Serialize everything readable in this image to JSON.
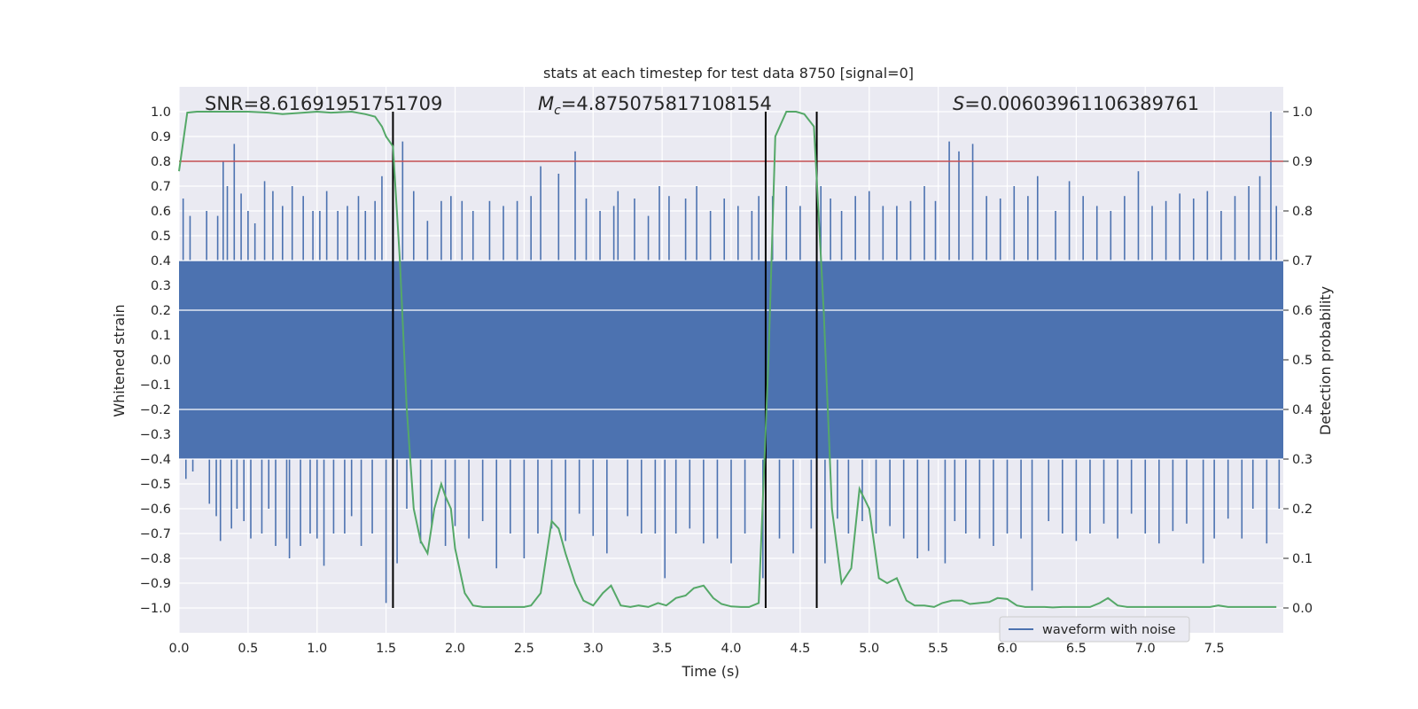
{
  "chart_data": {
    "type": "line",
    "title": "stats at each timestep for test data 8750 [signal=0]",
    "xlabel": "Time (s)",
    "ylabel_left": "Whitened strain",
    "ylabel_right": "Detection probability",
    "xlim": [
      0,
      8
    ],
    "ylim_left": [
      -1.1,
      1.1
    ],
    "ylim_right": [
      -0.05,
      1.05
    ],
    "x_ticks": [
      "0.0",
      "0.5",
      "1.0",
      "1.5",
      "2.0",
      "2.5",
      "3.0",
      "3.5",
      "4.0",
      "4.5",
      "5.0",
      "5.5",
      "6.0",
      "6.5",
      "7.0",
      "7.5"
    ],
    "y_ticks_left": [
      "1.0",
      "0.9",
      "0.8",
      "0.7",
      "0.6",
      "0.5",
      "0.4",
      "0.3",
      "0.2",
      "0.1",
      "0.0",
      "−0.1",
      "−0.2",
      "−0.3",
      "−0.4",
      "−0.5",
      "−0.6",
      "−0.7",
      "−0.8",
      "−0.9",
      "−1.0"
    ],
    "y_ticks_right": [
      "1.0",
      "0.9",
      "0.8",
      "0.7",
      "0.6",
      "0.5",
      "0.4",
      "0.3",
      "0.2",
      "0.1",
      "0.0"
    ],
    "grid": true,
    "annotations": {
      "snr": "SNR=8.61691951751709",
      "mc_prefix": "M",
      "mc_sub": "c",
      "mc_value": "=4.875075817108154",
      "s_prefix": "S",
      "s_value": "=0.00603961106389761"
    },
    "threshold": {
      "value": 0.9,
      "axis": "right",
      "color": "#c44e52"
    },
    "vertical_lines": [
      1.55,
      4.25,
      4.62
    ],
    "vertical_line_range": [
      -1.0,
      1.0
    ],
    "waveform": {
      "name": "waveform with noise",
      "color": "#4c72b0",
      "core_band": [
        -0.4,
        0.4
      ],
      "spikes": [
        [
          0.03,
          0.65
        ],
        [
          0.05,
          -0.48
        ],
        [
          0.08,
          0.58
        ],
        [
          0.1,
          -0.45
        ],
        [
          0.2,
          0.6
        ],
        [
          0.22,
          -0.58
        ],
        [
          0.27,
          -0.63
        ],
        [
          0.28,
          0.58
        ],
        [
          0.3,
          -0.73
        ],
        [
          0.32,
          0.8
        ],
        [
          0.35,
          0.7
        ],
        [
          0.38,
          -0.68
        ],
        [
          0.4,
          0.87
        ],
        [
          0.42,
          -0.6
        ],
        [
          0.45,
          0.67
        ],
        [
          0.47,
          -0.65
        ],
        [
          0.5,
          0.6
        ],
        [
          0.52,
          -0.72
        ],
        [
          0.55,
          0.55
        ],
        [
          0.6,
          -0.7
        ],
        [
          0.62,
          0.72
        ],
        [
          0.65,
          -0.6
        ],
        [
          0.68,
          0.68
        ],
        [
          0.7,
          -0.75
        ],
        [
          0.75,
          0.62
        ],
        [
          0.78,
          -0.72
        ],
        [
          0.8,
          -0.8
        ],
        [
          0.82,
          0.7
        ],
        [
          0.88,
          -0.75
        ],
        [
          0.9,
          0.66
        ],
        [
          0.95,
          -0.7
        ],
        [
          0.97,
          0.6
        ],
        [
          1.0,
          -0.72
        ],
        [
          1.02,
          0.6
        ],
        [
          1.05,
          -0.83
        ],
        [
          1.07,
          0.68
        ],
        [
          1.12,
          -0.7
        ],
        [
          1.15,
          0.6
        ],
        [
          1.2,
          -0.7
        ],
        [
          1.22,
          0.62
        ],
        [
          1.25,
          -0.63
        ],
        [
          1.3,
          0.66
        ],
        [
          1.32,
          -0.75
        ],
        [
          1.35,
          0.6
        ],
        [
          1.4,
          -0.7
        ],
        [
          1.42,
          0.64
        ],
        [
          1.47,
          0.74
        ],
        [
          1.5,
          -0.98
        ],
        [
          1.55,
          0.62
        ],
        [
          1.58,
          -0.82
        ],
        [
          1.62,
          0.88
        ],
        [
          1.65,
          -0.6
        ],
        [
          1.7,
          0.68
        ],
        [
          1.75,
          -0.74
        ],
        [
          1.8,
          0.56
        ],
        [
          1.83,
          -0.67
        ],
        [
          1.9,
          0.64
        ],
        [
          1.93,
          -0.75
        ],
        [
          1.97,
          0.66
        ],
        [
          2.0,
          -0.67
        ],
        [
          2.05,
          0.64
        ],
        [
          2.1,
          -0.72
        ],
        [
          2.13,
          0.6
        ],
        [
          2.2,
          -0.65
        ],
        [
          2.25,
          0.64
        ],
        [
          2.3,
          -0.84
        ],
        [
          2.35,
          0.62
        ],
        [
          2.4,
          -0.7
        ],
        [
          2.45,
          0.64
        ],
        [
          2.5,
          -0.8
        ],
        [
          2.55,
          0.66
        ],
        [
          2.6,
          -0.7
        ],
        [
          2.62,
          0.78
        ],
        [
          2.7,
          -0.68
        ],
        [
          2.75,
          0.75
        ],
        [
          2.8,
          -0.73
        ],
        [
          2.87,
          0.84
        ],
        [
          2.9,
          -0.62
        ],
        [
          2.95,
          0.65
        ],
        [
          3.0,
          -0.71
        ],
        [
          3.05,
          0.6
        ],
        [
          3.1,
          -0.78
        ],
        [
          3.15,
          0.62
        ],
        [
          3.18,
          0.68
        ],
        [
          3.25,
          -0.63
        ],
        [
          3.3,
          0.65
        ],
        [
          3.35,
          -0.7
        ],
        [
          3.4,
          0.58
        ],
        [
          3.45,
          -0.7
        ],
        [
          3.48,
          0.7
        ],
        [
          3.52,
          -0.88
        ],
        [
          3.55,
          0.66
        ],
        [
          3.6,
          -0.7
        ],
        [
          3.67,
          0.65
        ],
        [
          3.7,
          -0.68
        ],
        [
          3.75,
          0.7
        ],
        [
          3.8,
          -0.74
        ],
        [
          3.85,
          0.6
        ],
        [
          3.9,
          -0.72
        ],
        [
          3.95,
          0.65
        ],
        [
          4.0,
          -0.82
        ],
        [
          4.05,
          0.62
        ],
        [
          4.1,
          -0.7
        ],
        [
          4.15,
          0.6
        ],
        [
          4.2,
          0.66
        ],
        [
          4.23,
          -0.88
        ],
        [
          4.3,
          0.66
        ],
        [
          4.35,
          -0.72
        ],
        [
          4.4,
          0.7
        ],
        [
          4.45,
          -0.78
        ],
        [
          4.5,
          0.62
        ],
        [
          4.58,
          -0.68
        ],
        [
          4.65,
          0.7
        ],
        [
          4.68,
          -0.82
        ],
        [
          4.72,
          0.65
        ],
        [
          4.77,
          -0.64
        ],
        [
          4.8,
          0.6
        ],
        [
          4.85,
          -0.7
        ],
        [
          4.9,
          0.66
        ],
        [
          4.95,
          -0.65
        ],
        [
          5.0,
          0.68
        ],
        [
          5.05,
          -0.7
        ],
        [
          5.1,
          0.62
        ],
        [
          5.15,
          -0.67
        ],
        [
          5.2,
          0.62
        ],
        [
          5.25,
          -0.72
        ],
        [
          5.3,
          0.64
        ],
        [
          5.35,
          -0.8
        ],
        [
          5.4,
          0.7
        ],
        [
          5.43,
          -0.77
        ],
        [
          5.48,
          0.64
        ],
        [
          5.55,
          -0.82
        ],
        [
          5.58,
          0.88
        ],
        [
          5.62,
          -0.65
        ],
        [
          5.65,
          0.84
        ],
        [
          5.7,
          -0.7
        ],
        [
          5.75,
          0.87
        ],
        [
          5.8,
          -0.72
        ],
        [
          5.85,
          0.66
        ],
        [
          5.9,
          -0.75
        ],
        [
          5.95,
          0.65
        ],
        [
          6.0,
          -0.7
        ],
        [
          6.05,
          0.7
        ],
        [
          6.1,
          -0.72
        ],
        [
          6.15,
          0.66
        ],
        [
          6.18,
          -0.93
        ],
        [
          6.22,
          0.74
        ],
        [
          6.3,
          -0.65
        ],
        [
          6.35,
          0.6
        ],
        [
          6.4,
          -0.7
        ],
        [
          6.45,
          0.72
        ],
        [
          6.5,
          -0.73
        ],
        [
          6.55,
          0.66
        ],
        [
          6.6,
          -0.7
        ],
        [
          6.65,
          0.62
        ],
        [
          6.7,
          -0.66
        ],
        [
          6.75,
          0.6
        ],
        [
          6.8,
          -0.72
        ],
        [
          6.85,
          0.66
        ],
        [
          6.9,
          -0.62
        ],
        [
          6.95,
          0.76
        ],
        [
          7.0,
          -0.7
        ],
        [
          7.05,
          0.62
        ],
        [
          7.1,
          -0.74
        ],
        [
          7.15,
          0.64
        ],
        [
          7.2,
          -0.69
        ],
        [
          7.25,
          0.67
        ],
        [
          7.3,
          -0.66
        ],
        [
          7.35,
          0.65
        ],
        [
          7.42,
          -0.82
        ],
        [
          7.45,
          0.68
        ],
        [
          7.5,
          -0.72
        ],
        [
          7.55,
          0.6
        ],
        [
          7.6,
          -0.64
        ],
        [
          7.65,
          0.66
        ],
        [
          7.7,
          -0.72
        ],
        [
          7.75,
          0.7
        ],
        [
          7.78,
          -0.6
        ],
        [
          7.83,
          0.74
        ],
        [
          7.88,
          -0.74
        ],
        [
          7.91,
          1.0
        ],
        [
          7.95,
          0.62
        ],
        [
          7.97,
          -0.6
        ]
      ]
    },
    "series": [
      {
        "color": "#55a868",
        "x": [
          0.0,
          0.06,
          0.13,
          0.25,
          0.35,
          0.5,
          0.65,
          0.75,
          0.9,
          1.0,
          1.1,
          1.25,
          1.35,
          1.42,
          1.47,
          1.5,
          1.55,
          1.6,
          1.65,
          1.7,
          1.75,
          1.8,
          1.85,
          1.9,
          1.93,
          1.97,
          2.0,
          2.07,
          2.13,
          2.2,
          2.35,
          2.5,
          2.55,
          2.62,
          2.7,
          2.75,
          2.8,
          2.87,
          2.93,
          3.0,
          3.07,
          3.13,
          3.2,
          3.27,
          3.33,
          3.4,
          3.47,
          3.53,
          3.6,
          3.67,
          3.73,
          3.8,
          3.87,
          3.93,
          4.0,
          4.07,
          4.13,
          4.2,
          4.27,
          4.32,
          4.4,
          4.47,
          4.53,
          4.6,
          4.67,
          4.73,
          4.8,
          4.87,
          4.93,
          5.0,
          5.07,
          5.13,
          5.2,
          5.27,
          5.33,
          5.4,
          5.47,
          5.53,
          5.6,
          5.67,
          5.73,
          5.8,
          5.87,
          5.93,
          6.0,
          6.07,
          6.13,
          6.2,
          6.27,
          6.33,
          6.4,
          6.47,
          6.53,
          6.6,
          6.67,
          6.73,
          6.8,
          6.87,
          6.93,
          7.0,
          7.07,
          7.13,
          7.2,
          7.27,
          7.33,
          7.4,
          7.47,
          7.53,
          7.6,
          7.67,
          7.73,
          7.8,
          7.87,
          7.95
        ],
        "values": [
          0.88,
          0.998,
          1.0,
          1.0,
          1.0,
          1.0,
          0.998,
          0.995,
          0.998,
          1.0,
          0.998,
          1.0,
          0.995,
          0.99,
          0.97,
          0.95,
          0.93,
          0.7,
          0.4,
          0.2,
          0.135,
          0.11,
          0.2,
          0.25,
          0.225,
          0.2,
          0.12,
          0.03,
          0.005,
          0.002,
          0.002,
          0.002,
          0.005,
          0.03,
          0.175,
          0.16,
          0.11,
          0.05,
          0.015,
          0.005,
          0.03,
          0.045,
          0.005,
          0.002,
          0.005,
          0.002,
          0.01,
          0.005,
          0.02,
          0.025,
          0.04,
          0.045,
          0.02,
          0.008,
          0.003,
          0.002,
          0.002,
          0.01,
          0.5,
          0.95,
          1.0,
          1.0,
          0.995,
          0.97,
          0.6,
          0.2,
          0.05,
          0.08,
          0.24,
          0.2,
          0.06,
          0.05,
          0.06,
          0.015,
          0.005,
          0.005,
          0.002,
          0.01,
          0.015,
          0.015,
          0.008,
          0.01,
          0.012,
          0.02,
          0.018,
          0.005,
          0.002,
          0.002,
          0.002,
          0.001,
          0.002,
          0.002,
          0.002,
          0.002,
          0.01,
          0.02,
          0.005,
          0.002,
          0.002,
          0.002,
          0.002,
          0.002,
          0.002,
          0.002,
          0.002,
          0.002,
          0.002,
          0.005,
          0.002,
          0.002,
          0.002,
          0.002,
          0.002,
          0.002
        ]
      }
    ],
    "legend": {
      "position": "lower-right"
    }
  }
}
